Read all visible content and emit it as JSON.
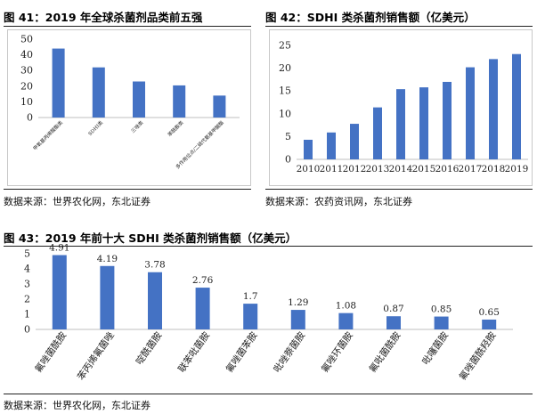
{
  "figure41": {
    "title": "图 41：2019 年全球杀菌剂品类前五强",
    "source": "数据来源：世界农化网，东北证券"
  },
  "figure42": {
    "title": "图 42：SDHI 类杀菌剂销售额（亿美元）",
    "source": "数据来源：农药资讯网，东北证券"
  },
  "figure43": {
    "title": "图 43：2019 年前十大 SDHI 类杀菌剂销售额（亿美元）",
    "source": "数据来源：世界农化网，东北证券"
  },
  "colors": {
    "bar": "#4472c4",
    "axis": "#bfbfbf",
    "text": "#222222"
  },
  "chart_data": [
    {
      "type": "bar",
      "title": "",
      "categories": [
        "甲氧基丙烯酸酯类",
        "SDHI类",
        "三唑类",
        "苯酰胺类",
        "多作用位点/二硫代氨基甲酸酯"
      ],
      "values": [
        44,
        32,
        23,
        20.5,
        14
      ],
      "ylim": [
        0,
        50
      ],
      "yticks": [
        0,
        10,
        20,
        30,
        40,
        50
      ],
      "tick_labels": [
        "0",
        "10",
        "20",
        "30",
        "40",
        "50"
      ],
      "grid": false
    },
    {
      "type": "bar",
      "title": "",
      "categories": [
        "2010",
        "2011",
        "2012",
        "2013",
        "2014",
        "2015",
        "2016",
        "2017",
        "2018",
        "2019"
      ],
      "values": [
        4.3,
        5.9,
        7.8,
        11.4,
        15.4,
        15.8,
        17.0,
        20.2,
        22.0,
        23.1
      ],
      "ylim": [
        0,
        25
      ],
      "yticks": [
        0,
        5,
        10,
        15,
        20,
        25
      ],
      "tick_labels": [
        "0",
        "5",
        "10",
        "15",
        "20",
        "25"
      ],
      "grid": false
    },
    {
      "type": "bar",
      "title": "",
      "categories": [
        "氟唑菌酰胺",
        "苯丙烯氟菌唑",
        "啶酰菌胺",
        "联苯吡菌胺",
        "氟唑菌苯胺",
        "吡唑萘菌胺",
        "氟唑环菌胺",
        "氟吡菌酰胺",
        "吡噻菌胺",
        "氟唑菌酰羟胺"
      ],
      "values": [
        4.91,
        4.19,
        3.78,
        2.76,
        1.7,
        1.29,
        1.08,
        0.87,
        0.85,
        0.65
      ],
      "value_labels": [
        "4.91",
        "4.19",
        "3.78",
        "2.76",
        "1.7",
        "1.29",
        "1.08",
        "0.87",
        "0.85",
        "0.65"
      ],
      "ylim": [
        0,
        5
      ],
      "yticks": [
        0,
        1,
        2,
        3,
        4,
        5
      ],
      "tick_labels": [
        "0",
        "1",
        "2",
        "3",
        "4",
        "5"
      ],
      "grid": false
    }
  ]
}
